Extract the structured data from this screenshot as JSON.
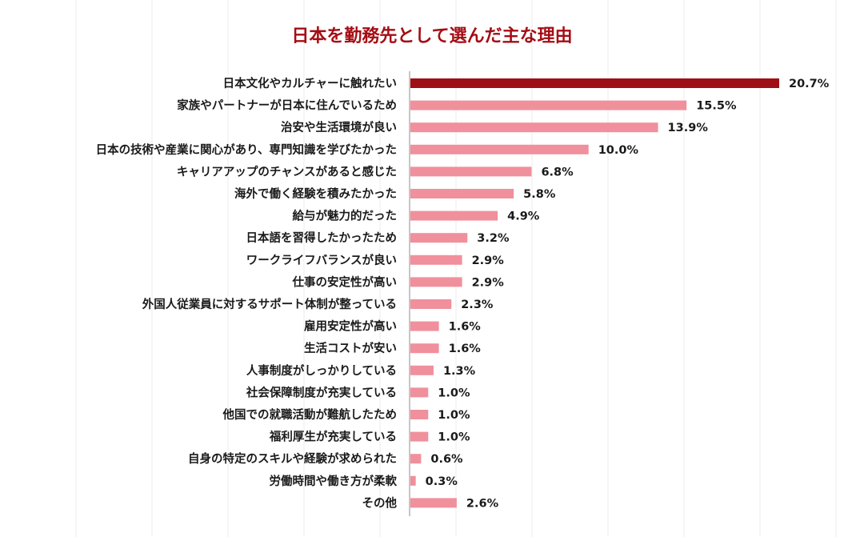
{
  "colors": {
    "highlight_bar": "#9e0f16",
    "bar": "#f0909c",
    "title": "#a50d14",
    "axis": "#8c8c8c",
    "text": "#1a1a1a"
  },
  "chart_data": {
    "type": "bar",
    "orientation": "horizontal",
    "title": "日本を勤務先として選んだ主な理由",
    "xlabel": "",
    "ylabel": "",
    "unit": "%",
    "xlim": [
      0,
      20.7
    ],
    "grid": false,
    "legend": "none",
    "highlight_index": 0,
    "categories": [
      "日本文化やカルチャーに触れたい",
      "家族やパートナーが日本に住んでいるため",
      "治安や生活環境が良い",
      "日本の技術や産業に関心があり、専門知識を学びたかった",
      "キャリアアップのチャンスがあると感じた",
      "海外で働く経験を積みたかった",
      "給与が魅力的だった",
      "日本語を習得したかったため",
      "ワークライフバランスが良い",
      "仕事の安定性が高い",
      "外国人従業員に対するサポート体制が整っている",
      "雇用安定性が高い",
      "生活コストが安い",
      "人事制度がしっかりしている",
      "社会保障制度が充実している",
      "他国での就職活動が難航したため",
      "福利厚生が充実している",
      "自身の特定のスキルや経験が求められた",
      "労働時間や働き方が柔軟",
      "その他"
    ],
    "values": [
      20.7,
      15.5,
      13.9,
      10.0,
      6.8,
      5.8,
      4.9,
      3.2,
      2.9,
      2.9,
      2.3,
      1.6,
      1.6,
      1.3,
      1.0,
      1.0,
      1.0,
      0.6,
      0.3,
      2.6
    ],
    "value_labels": [
      "20.7%",
      "15.5%",
      "13.9%",
      "10.0%",
      "6.8%",
      "5.8%",
      "4.9%",
      "3.2%",
      "2.9%",
      "2.9%",
      "2.3%",
      "1.6%",
      "1.6%",
      "1.3%",
      "1.0%",
      "1.0%",
      "1.0%",
      "0.6%",
      "0.3%",
      "2.6%"
    ]
  }
}
